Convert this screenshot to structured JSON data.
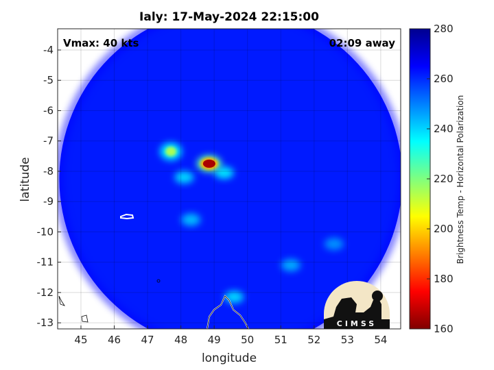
{
  "chart_data": {
    "type": "heatmap",
    "title": "Ialy: 17-May-2024 22:15:00",
    "xlabel": "longitude",
    "ylabel": "latitude",
    "xlim": [
      44.3,
      54.6
    ],
    "ylim": [
      -13.2,
      -3.3
    ],
    "x_ticks": [
      "45",
      "46",
      "47",
      "48",
      "49",
      "50",
      "51",
      "52",
      "53",
      "54"
    ],
    "y_ticks": [
      "-4",
      "-5",
      "-6",
      "-7",
      "-8",
      "-9",
      "-10",
      "-11",
      "-12",
      "-13"
    ],
    "grid": true,
    "annotations": {
      "vmax": "Vmax: 40 kts",
      "time_offset": "02:09 away"
    },
    "colorbar": {
      "label": "Brightness Temp - Horizontal Polarization",
      "range": [
        160,
        280
      ],
      "ticks": [
        "160",
        "180",
        "200",
        "220",
        "240",
        "260",
        "280"
      ],
      "colormap": "jet"
    },
    "swath": {
      "center_lon": 49.5,
      "center_lat": -8.25,
      "background_temp": 262
    },
    "features": [
      {
        "lon": 48.85,
        "lat": -7.75,
        "temp": 165,
        "label": "cold core"
      },
      {
        "lon": 47.7,
        "lat": -7.35,
        "temp": 215,
        "label": "convective band"
      },
      {
        "lon": 49.3,
        "lat": -8.05,
        "temp": 238,
        "label": "band"
      },
      {
        "lon": 48.1,
        "lat": -8.2,
        "temp": 240,
        "label": "band"
      },
      {
        "lon": 48.3,
        "lat": -9.6,
        "temp": 243,
        "label": "band"
      },
      {
        "lon": 49.6,
        "lat": -12.15,
        "temp": 240,
        "label": "band"
      },
      {
        "lon": 51.3,
        "lat": -11.1,
        "temp": 245,
        "label": "band"
      },
      {
        "lon": 52.6,
        "lat": -10.4,
        "temp": 248,
        "label": "band"
      }
    ]
  },
  "logo": {
    "text": "CIMSS"
  }
}
